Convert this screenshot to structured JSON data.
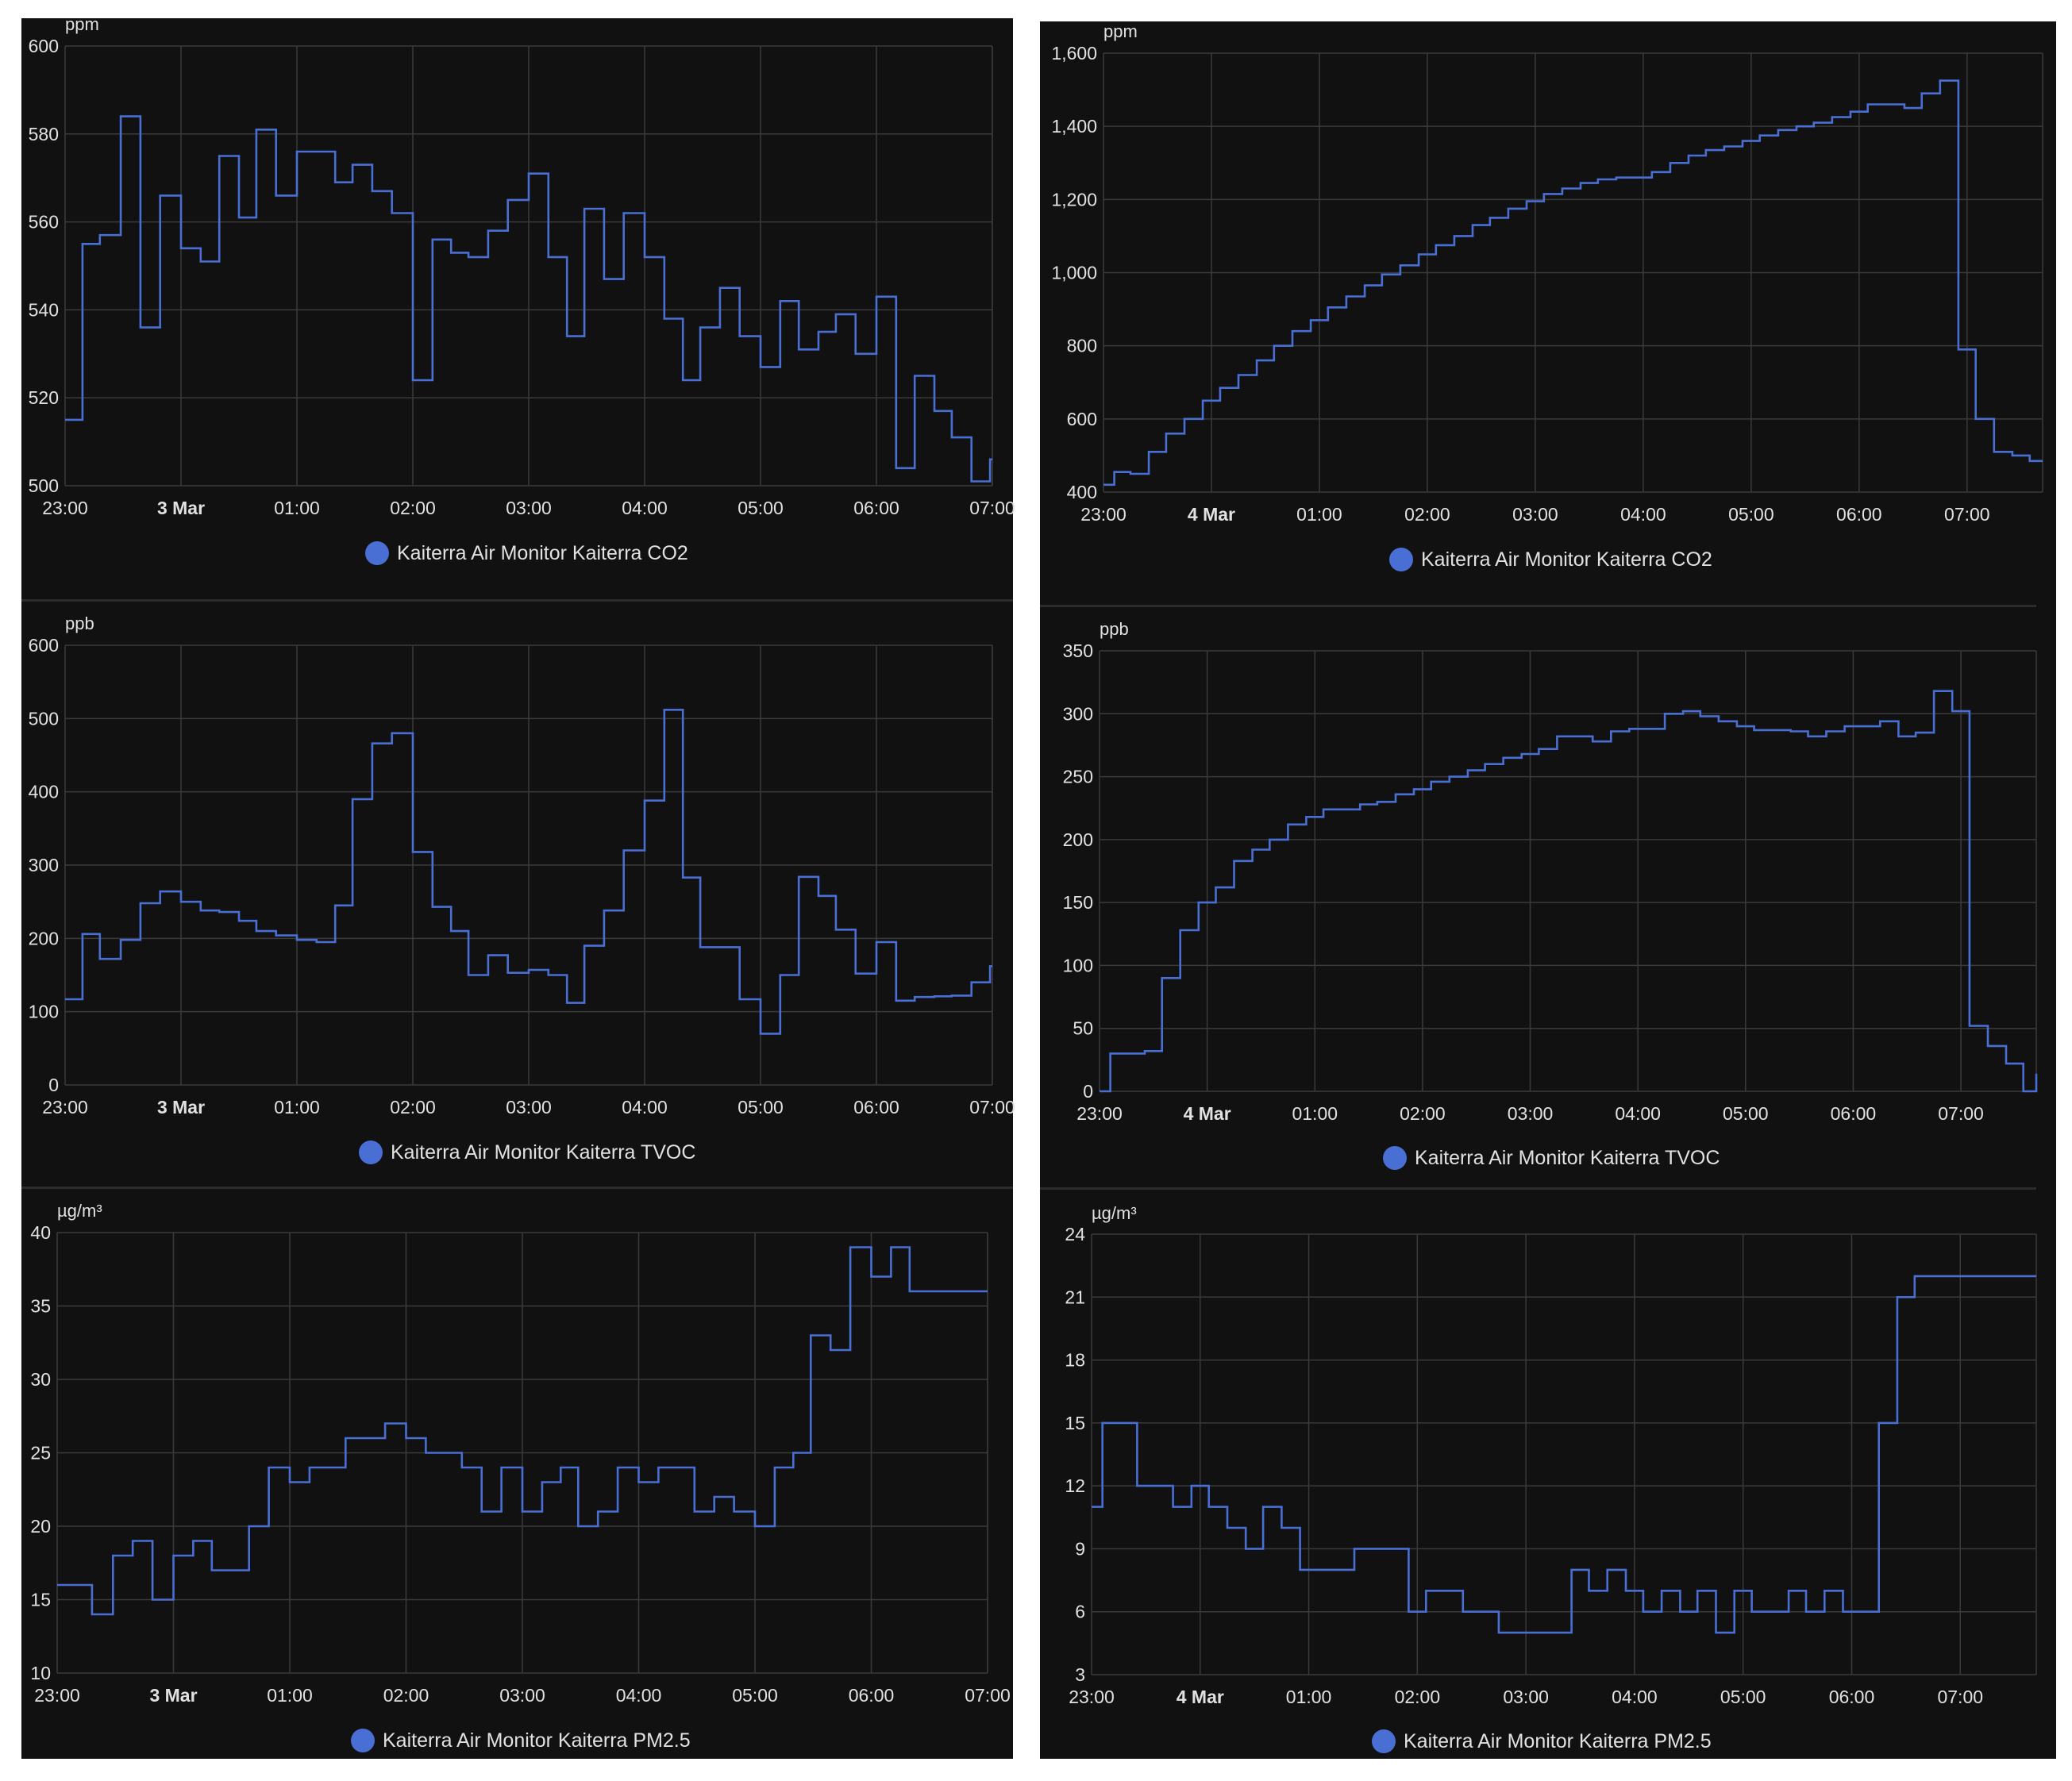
{
  "colors": {
    "line": "#4a6fd4",
    "grid": "#3a3a3a",
    "text": "#e1e1e1",
    "background": "#111111",
    "legend_dot": "#4a6fd4"
  },
  "chart_data": [
    {
      "id": "left-co2",
      "type": "line",
      "step": true,
      "ylabel": "ppm",
      "ylim": [
        500,
        600
      ],
      "yticks": [
        500,
        520,
        540,
        560,
        580,
        600
      ],
      "ytick_labels": [
        "500",
        "520",
        "540",
        "560",
        "580",
        "600"
      ],
      "x_unit": "hours since 23:00 (2 Mar)",
      "xlim": [
        0,
        8
      ],
      "xticks": [
        0,
        1,
        2,
        3,
        4,
        5,
        6,
        7,
        8
      ],
      "xtick_labels": [
        "23:00",
        "3 Mar",
        "01:00",
        "02:00",
        "03:00",
        "04:00",
        "05:00",
        "06:00",
        "07:00"
      ],
      "xtick_bold": [
        1
      ],
      "series": [
        {
          "name": "Kaiterra Air Monitor Kaiterra CO2",
          "x": [
            0,
            0.15,
            0.3,
            0.48,
            0.65,
            0.82,
            1,
            1.17,
            1.33,
            1.5,
            1.65,
            1.82,
            2,
            2.17,
            2.33,
            2.48,
            2.65,
            2.82,
            3,
            3.17,
            3.33,
            3.48,
            3.65,
            3.82,
            4,
            4.17,
            4.33,
            4.48,
            4.65,
            4.82,
            5,
            5.17,
            5.33,
            5.48,
            5.65,
            5.82,
            6,
            6.17,
            6.33,
            6.5,
            6.65,
            6.82,
            7,
            7.17,
            7.33,
            7.5,
            7.65,
            7.82,
            7.98
          ],
          "y": [
            515,
            555,
            557,
            584,
            536,
            566,
            554,
            551,
            575,
            561,
            581,
            566,
            576,
            576,
            569,
            573,
            567,
            562,
            524,
            556,
            553,
            552,
            558,
            565,
            571,
            552,
            534,
            563,
            547,
            562,
            552,
            538,
            524,
            536,
            545,
            534,
            527,
            542,
            531,
            535,
            539,
            530,
            543,
            504,
            525,
            517,
            511,
            501,
            506
          ]
        }
      ]
    },
    {
      "id": "left-tvoc",
      "type": "line",
      "step": true,
      "ylabel": "ppb",
      "ylim": [
        0,
        600
      ],
      "yticks": [
        0,
        100,
        200,
        300,
        400,
        500,
        600
      ],
      "ytick_labels": [
        "0",
        "100",
        "200",
        "300",
        "400",
        "500",
        "600"
      ],
      "x_unit": "hours since 23:00 (2 Mar)",
      "xlim": [
        0,
        8
      ],
      "xticks": [
        0,
        1,
        2,
        3,
        4,
        5,
        6,
        7,
        8
      ],
      "xtick_labels": [
        "23:00",
        "3 Mar",
        "01:00",
        "02:00",
        "03:00",
        "04:00",
        "05:00",
        "06:00",
        "07:00"
      ],
      "xtick_bold": [
        1
      ],
      "series": [
        {
          "name": "Kaiterra Air Monitor Kaiterra TVOC",
          "x": [
            0,
            0.15,
            0.3,
            0.48,
            0.65,
            0.82,
            1,
            1.17,
            1.33,
            1.5,
            1.65,
            1.82,
            2,
            2.17,
            2.33,
            2.48,
            2.65,
            2.82,
            3,
            3.17,
            3.33,
            3.48,
            3.65,
            3.82,
            4,
            4.17,
            4.33,
            4.48,
            4.65,
            4.82,
            5,
            5.17,
            5.33,
            5.48,
            5.65,
            5.82,
            6,
            6.17,
            6.33,
            6.5,
            6.65,
            6.82,
            7,
            7.17,
            7.33,
            7.5,
            7.65,
            7.82,
            7.98
          ],
          "y": [
            117,
            206,
            172,
            198,
            248,
            264,
            250,
            238,
            236,
            224,
            210,
            204,
            198,
            195,
            245,
            390,
            466,
            480,
            318,
            243,
            210,
            150,
            177,
            153,
            157,
            150,
            112,
            190,
            238,
            320,
            388,
            512,
            283,
            188,
            188,
            117,
            70,
            150,
            284,
            258,
            212,
            152,
            195,
            115,
            120,
            121,
            122,
            140,
            162
          ]
        }
      ]
    },
    {
      "id": "left-pm25",
      "type": "line",
      "step": true,
      "ylabel": "µg/m³",
      "ylim": [
        10,
        40
      ],
      "yticks": [
        10,
        15,
        20,
        25,
        30,
        35,
        40
      ],
      "ytick_labels": [
        "10",
        "15",
        "20",
        "25",
        "30",
        "35",
        "40"
      ],
      "x_unit": "hours since 23:00 (2 Mar)",
      "xlim": [
        0,
        8
      ],
      "xticks": [
        0,
        1,
        2,
        3,
        4,
        5,
        6,
        7,
        8
      ],
      "xtick_labels": [
        "23:00",
        "3 Mar",
        "01:00",
        "02:00",
        "03:00",
        "04:00",
        "05:00",
        "06:00",
        "07:00"
      ],
      "xtick_bold": [
        1
      ],
      "series": [
        {
          "name": "Kaiterra Air Monitor Kaiterra PM2.5",
          "x": [
            0,
            0.3,
            0.48,
            0.65,
            0.82,
            1,
            1.17,
            1.33,
            1.65,
            1.82,
            2,
            2.17,
            2.48,
            2.82,
            3,
            3.17,
            3.48,
            3.65,
            3.82,
            4,
            4.17,
            4.33,
            4.48,
            4.65,
            4.82,
            5,
            5.17,
            5.48,
            5.65,
            5.82,
            6,
            6.17,
            6.33,
            6.48,
            6.65,
            6.82,
            7,
            7.17,
            7.33,
            7.5,
            7.65,
            7.82,
            7.98
          ],
          "y": [
            16,
            14,
            18,
            19,
            15,
            18,
            19,
            17,
            20,
            24,
            23,
            24,
            26,
            27,
            26,
            25,
            24,
            21,
            24,
            21,
            23,
            24,
            20,
            21,
            24,
            23,
            24,
            21,
            22,
            21,
            20,
            24,
            25,
            33,
            32,
            39,
            37,
            39,
            36,
            36,
            36,
            36,
            36
          ]
        }
      ]
    },
    {
      "id": "right-co2",
      "type": "line",
      "step": true,
      "ylabel": "ppm",
      "ylim": [
        400,
        1600
      ],
      "yticks": [
        400,
        600,
        800,
        1000,
        1200,
        1400,
        1600
      ],
      "ytick_labels": [
        "400",
        "600",
        "800",
        "1,000",
        "1,200",
        "1,400",
        "1,600"
      ],
      "x_unit": "hours since 23:00 (3 Mar)",
      "xlim": [
        0,
        8.7
      ],
      "xticks": [
        0,
        1,
        2,
        3,
        4,
        5,
        6,
        7,
        8
      ],
      "xtick_labels": [
        "23:00",
        "4 Mar",
        "01:00",
        "02:00",
        "03:00",
        "04:00",
        "05:00",
        "06:00",
        "07:00"
      ],
      "xtick_bold": [
        1
      ],
      "series": [
        {
          "name": "Kaiterra Air Monitor Kaiterra CO2",
          "x": [
            0,
            0.1,
            0.25,
            0.42,
            0.58,
            0.75,
            0.92,
            1.08,
            1.25,
            1.42,
            1.58,
            1.75,
            1.92,
            2.08,
            2.25,
            2.42,
            2.58,
            2.75,
            2.92,
            3.08,
            3.25,
            3.42,
            3.58,
            3.75,
            3.92,
            4.08,
            4.25,
            4.42,
            4.58,
            4.75,
            4.92,
            5.08,
            5.25,
            5.42,
            5.58,
            5.75,
            5.92,
            6.08,
            6.25,
            6.42,
            6.58,
            6.75,
            6.92,
            7.08,
            7.25,
            7.42,
            7.58,
            7.75,
            7.92,
            8.08,
            8.25,
            8.42,
            8.58,
            8.7
          ],
          "y": [
            420,
            455,
            450,
            510,
            560,
            600,
            650,
            685,
            720,
            760,
            800,
            840,
            870,
            905,
            935,
            965,
            995,
            1020,
            1050,
            1075,
            1100,
            1130,
            1150,
            1175,
            1195,
            1215,
            1230,
            1245,
            1255,
            1260,
            1260,
            1275,
            1300,
            1320,
            1335,
            1345,
            1360,
            1375,
            1390,
            1400,
            1410,
            1425,
            1440,
            1460,
            1460,
            1450,
            1490,
            1525,
            790,
            600,
            510,
            500,
            485,
            485
          ]
        }
      ]
    },
    {
      "id": "right-tvoc",
      "type": "line",
      "step": true,
      "ylabel": "ppb",
      "ylim": [
        0,
        350
      ],
      "yticks": [
        0,
        50,
        100,
        150,
        200,
        250,
        300,
        350
      ],
      "ytick_labels": [
        "0",
        "50",
        "100",
        "150",
        "200",
        "250",
        "300",
        "350"
      ],
      "x_unit": "hours since 23:00 (3 Mar)",
      "xlim": [
        0,
        8.7
      ],
      "xticks": [
        0,
        1,
        2,
        3,
        4,
        5,
        6,
        7,
        8
      ],
      "xtick_labels": [
        "23:00",
        "4 Mar",
        "01:00",
        "02:00",
        "03:00",
        "04:00",
        "05:00",
        "06:00",
        "07:00"
      ],
      "xtick_bold": [
        1
      ],
      "series": [
        {
          "name": "Kaiterra Air Monitor Kaiterra TVOC",
          "x": [
            0,
            0.1,
            0.42,
            0.58,
            0.75,
            0.92,
            1.08,
            1.25,
            1.42,
            1.58,
            1.75,
            1.92,
            2.08,
            2.25,
            2.42,
            2.58,
            2.75,
            2.92,
            3.08,
            3.25,
            3.42,
            3.58,
            3.75,
            3.92,
            4.08,
            4.25,
            4.42,
            4.58,
            4.75,
            4.92,
            5.08,
            5.25,
            5.42,
            5.58,
            5.75,
            5.92,
            6.08,
            6.25,
            6.42,
            6.58,
            6.75,
            6.92,
            7.08,
            7.25,
            7.42,
            7.58,
            7.75,
            7.92,
            8.08,
            8.25,
            8.42,
            8.58,
            8.7
          ],
          "y": [
            0,
            30,
            32,
            90,
            128,
            150,
            162,
            183,
            192,
            200,
            212,
            218,
            224,
            224,
            228,
            230,
            236,
            240,
            246,
            250,
            255,
            260,
            265,
            268,
            272,
            282,
            282,
            278,
            286,
            288,
            288,
            300,
            302,
            298,
            294,
            290,
            287,
            287,
            286,
            282,
            286,
            290,
            290,
            294,
            282,
            285,
            318,
            302,
            52,
            36,
            22,
            0,
            14
          ]
        }
      ]
    },
    {
      "id": "right-pm25",
      "type": "line",
      "step": true,
      "ylabel": "µg/m³",
      "ylim": [
        3,
        24
      ],
      "yticks": [
        3,
        6,
        9,
        12,
        15,
        18,
        21,
        24
      ],
      "ytick_labels": [
        "3",
        "6",
        "9",
        "12",
        "15",
        "18",
        "21",
        "24"
      ],
      "x_unit": "hours since 23:00 (3 Mar)",
      "xlim": [
        0,
        8.7
      ],
      "xticks": [
        0,
        1,
        2,
        3,
        4,
        5,
        6,
        7,
        8
      ],
      "xtick_labels": [
        "23:00",
        "4 Mar",
        "01:00",
        "02:00",
        "03:00",
        "04:00",
        "05:00",
        "06:00",
        "07:00"
      ],
      "xtick_bold": [
        1
      ],
      "series": [
        {
          "name": "Kaiterra Air Monitor Kaiterra PM2.5",
          "x": [
            0,
            0.1,
            0.42,
            0.75,
            0.92,
            1.08,
            1.25,
            1.42,
            1.58,
            1.75,
            1.92,
            2.42,
            2.92,
            3.08,
            3.42,
            3.75,
            4.42,
            4.58,
            4.75,
            4.92,
            5.08,
            5.25,
            5.42,
            5.58,
            5.75,
            5.92,
            6.08,
            6.42,
            6.58,
            6.75,
            6.92,
            7.25,
            7.42,
            7.58,
            7.75,
            8.08,
            8.42,
            8.58,
            8.7
          ],
          "y": [
            11,
            15,
            12,
            11,
            12,
            11,
            10,
            9,
            11,
            10,
            8,
            9,
            6,
            7,
            6,
            5,
            8,
            7,
            8,
            7,
            6,
            7,
            6,
            7,
            5,
            7,
            6,
            7,
            6,
            7,
            6,
            15,
            21,
            22,
            22,
            22,
            22,
            22,
            22
          ]
        }
      ]
    }
  ]
}
